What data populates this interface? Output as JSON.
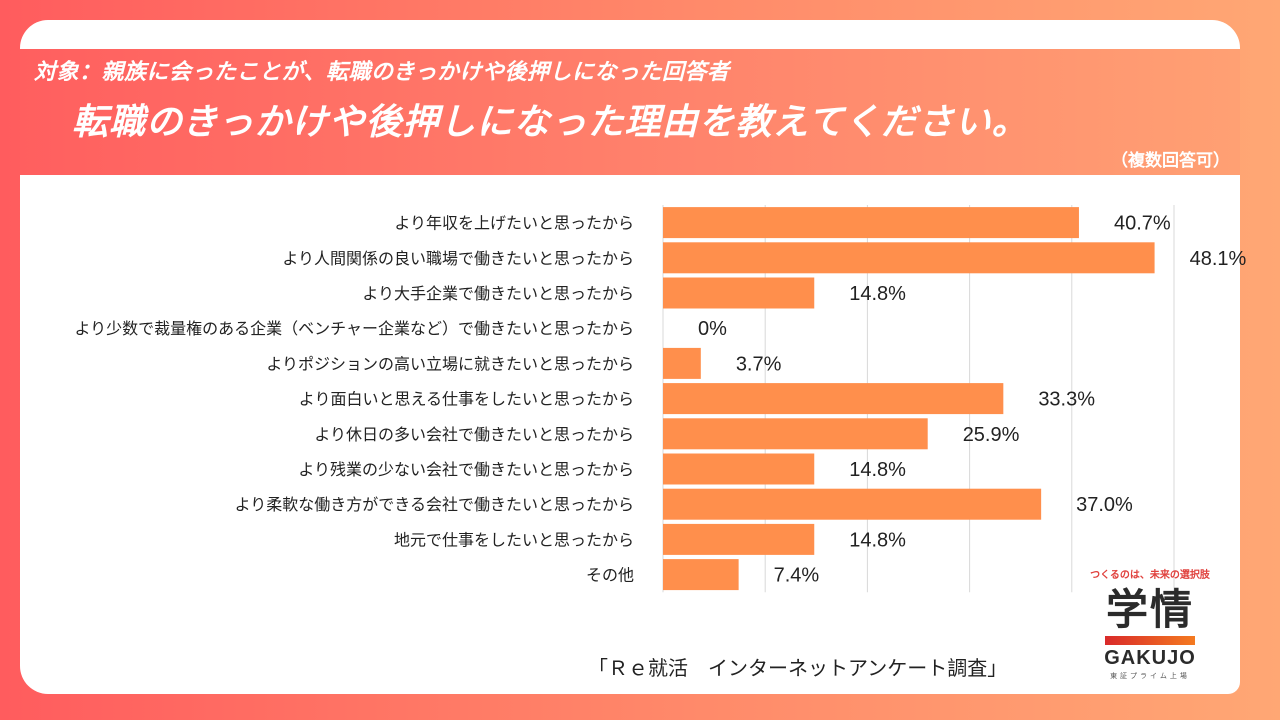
{
  "header": {
    "subtitle": "対象：親族に会ったことが、転職のきっかけや後押しになった回答者",
    "title": "転職のきっかけや後押しになった理由を教えてください。",
    "note": "（複数回答可）"
  },
  "colors": {
    "bar": "#ff8f4c",
    "grid": "#d8d8d8",
    "accent": "#ff5f5f"
  },
  "chart_data": {
    "type": "bar",
    "orientation": "horizontal",
    "title": "転職のきっかけや後押しになった理由を教えてください。",
    "xlabel": "",
    "ylabel": "",
    "xlim": [
      0,
      50
    ],
    "grid": true,
    "grid_step": 10,
    "unit": "%",
    "categories": [
      "より年収を上げたいと思ったから",
      "より人間関係の良い職場で働きたいと思ったから",
      "より大手企業で働きたいと思ったから",
      "より少数で裁量権のある企業（ベンチャー企業など）で働きたいと思ったから",
      "よりポジションの高い立場に就きたいと思ったから",
      "より面白いと思える仕事をしたいと思ったから",
      "より休日の多い会社で働きたいと思ったから",
      "より残業の少ない会社で働きたいと思ったから",
      "より柔軟な働き方ができる会社で働きたいと思ったから",
      "地元で仕事をしたいと思ったから",
      "その他"
    ],
    "values": [
      40.7,
      48.1,
      14.8,
      0,
      3.7,
      33.3,
      25.9,
      14.8,
      37.0,
      14.8,
      7.4
    ],
    "value_labels": [
      "40.7%",
      "48.1%",
      "14.8%",
      "0%",
      "3.7%",
      "33.3%",
      "25.9%",
      "14.8%",
      "37.0%",
      "14.8%",
      "7.4%"
    ]
  },
  "footer": {
    "source": "「Ｒｅ就活　インターネットアンケート調査」"
  },
  "logo": {
    "tagline": "つくるのは、未来の選択肢",
    "kanji": "学情",
    "name": "GAKUJO",
    "sub": "東証プライム上場"
  }
}
